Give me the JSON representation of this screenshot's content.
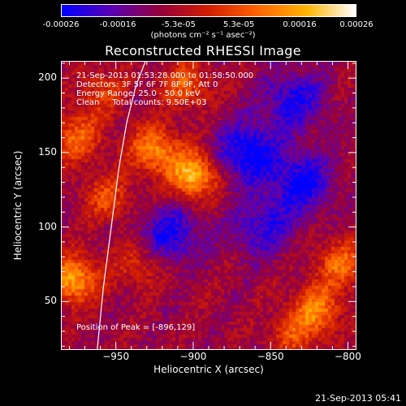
{
  "colorbar": {
    "min": -0.00026,
    "max": 0.00026,
    "ticks": [
      {
        "value": -0.00026,
        "label": "-0.00026"
      },
      {
        "value": -0.00016,
        "label": "-0.00016"
      },
      {
        "value": -5.3e-05,
        "label": "-5.3e-05"
      },
      {
        "value": 5.3e-05,
        "label": "5.3e-05"
      },
      {
        "value": 0.00016,
        "label": "0.00016"
      },
      {
        "value": 0.00026,
        "label": "0.00026"
      }
    ],
    "unit_text": "(photons cm⁻² s⁻¹ asec⁻²)",
    "colors": [
      "#0000ff",
      "#5a00b4",
      "#96003c",
      "#d21e00",
      "#ff6400",
      "#ffb400",
      "#ffffff"
    ]
  },
  "chart_data": {
    "type": "heatmap",
    "title": "Reconstructed RHESSI Image",
    "xlabel": "Heliocentric X (arcsec)",
    "ylabel": "Heliocentric Y (arcsec)",
    "xlim": [
      -985,
      -795
    ],
    "ylim": [
      18,
      211
    ],
    "xticks": [
      -950,
      -900,
      -850,
      -800
    ],
    "yticks": [
      50,
      100,
      150,
      200
    ],
    "limb_curve": {
      "x": [
        -962,
        -958,
        -953,
        -948,
        -943,
        -937,
        -931
      ],
      "y": [
        18,
        60,
        100,
        140,
        170,
        195,
        211
      ]
    },
    "sources": [
      {
        "x": -900,
        "y": 135,
        "amplitude": 0.00026
      },
      {
        "x": -925,
        "y": 152,
        "amplitude": 0.0002
      },
      {
        "x": -975,
        "y": 160,
        "amplitude": 0.00016
      },
      {
        "x": -978,
        "y": 65,
        "amplitude": 0.00024
      },
      {
        "x": -955,
        "y": 120,
        "amplitude": 0.00012
      },
      {
        "x": -820,
        "y": 45,
        "amplitude": 0.00018
      },
      {
        "x": -805,
        "y": 75,
        "amplitude": 0.00016
      },
      {
        "x": -835,
        "y": 28,
        "amplitude": 0.00012
      },
      {
        "x": -905,
        "y": 195,
        "amplitude": 0.00014
      },
      {
        "x": -960,
        "y": 190,
        "amplitude": 0.0001
      },
      {
        "x": -935,
        "y": 75,
        "amplitude": 0.0001
      }
    ],
    "negative_regions": [
      {
        "x": -865,
        "y": 150,
        "amplitude": -0.0002
      },
      {
        "x": -830,
        "y": 130,
        "amplitude": -0.00018
      },
      {
        "x": -915,
        "y": 95,
        "amplitude": -0.00016
      },
      {
        "x": -855,
        "y": 100,
        "amplitude": -0.00014
      },
      {
        "x": -835,
        "y": 185,
        "amplitude": -0.00016
      }
    ]
  },
  "info": {
    "time_range": "21-Sep-2013 01:53:28.000 to 01:58:50.000",
    "detectors": "Detectors: 3F 5F 6F 7F 8F 9F, Att 0",
    "energy_range": "Energy Range: 25.0 - 50.0 keV",
    "clean_counts": "Clean     Total counts: 9.50E+03",
    "peak": "Position of Peak = [-896,129]"
  },
  "footer": "21-Sep-2013 05:41"
}
